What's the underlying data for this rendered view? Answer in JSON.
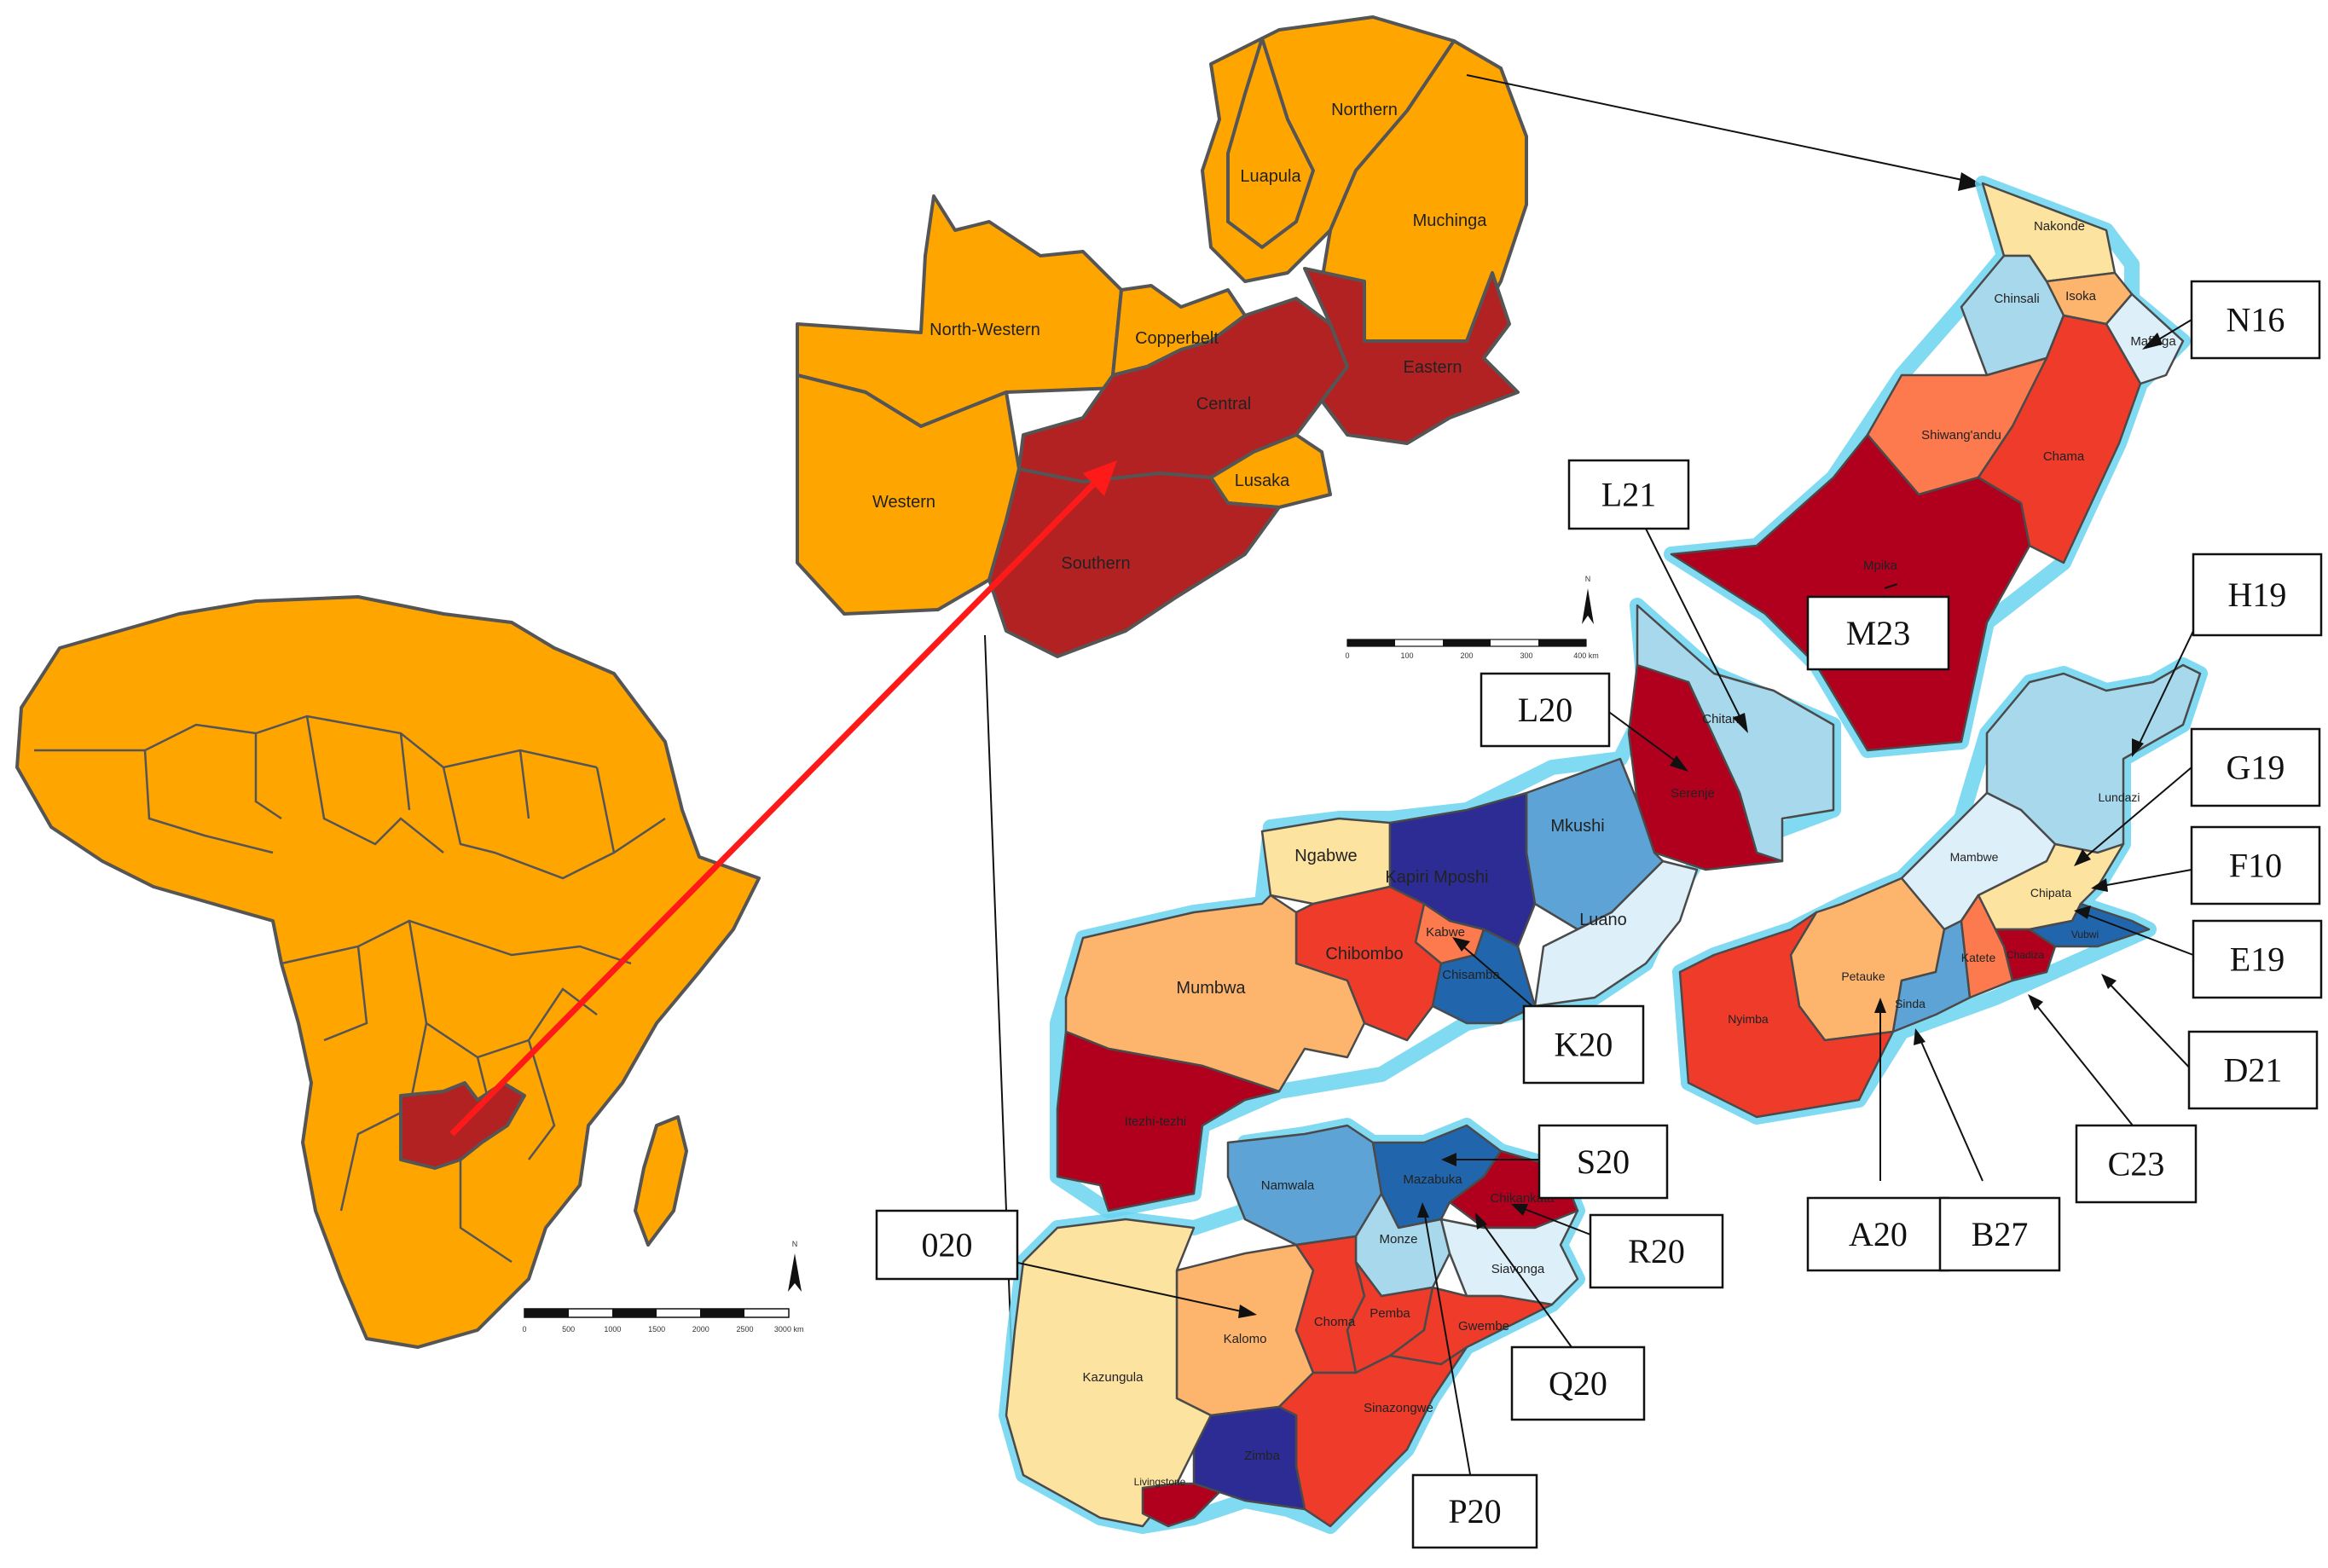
{
  "colors": {
    "orange": "#FFA500",
    "dark_red": "#B22222",
    "deep_red": "#B0001E",
    "red": "#EE3B2A",
    "salmon": "#FC7A4E",
    "light_orange": "#FDB56E",
    "cream": "#FDE3A0",
    "pale_blue": "#DDEFF8",
    "light_blue": "#A8D8EC",
    "mid_blue": "#5DA3D5",
    "blue": "#2166AC",
    "navy": "#2C2C94",
    "highlight_glow": "#6AD3F0",
    "arrow_red": "#FF1A1A"
  },
  "africa_scale": {
    "ticks": [
      "0",
      "500",
      "1000",
      "1500",
      "2000",
      "2500",
      "3000 km"
    ],
    "north": "N"
  },
  "zambia_scale": {
    "ticks": [
      "0",
      "100",
      "200",
      "300",
      "400 km"
    ],
    "north": "N"
  },
  "provinces": [
    {
      "name": "Northern",
      "highlight": false
    },
    {
      "name": "Luapula",
      "highlight": false
    },
    {
      "name": "Muchinga",
      "highlight": false
    },
    {
      "name": "North-Western",
      "highlight": false
    },
    {
      "name": "Copperbelt",
      "highlight": false
    },
    {
      "name": "Central",
      "highlight": true
    },
    {
      "name": "Eastern",
      "highlight": true
    },
    {
      "name": "Western",
      "highlight": false
    },
    {
      "name": "Lusaka",
      "highlight": false
    },
    {
      "name": "Southern",
      "highlight": true
    }
  ],
  "muchinga_districts": [
    {
      "name": "Nakonde",
      "color": "cream"
    },
    {
      "name": "Isoka",
      "color": "light_orange"
    },
    {
      "name": "Chinsali",
      "color": "light_blue"
    },
    {
      "name": "Mafinga",
      "color": "pale_blue"
    },
    {
      "name": "Shiwang'andu",
      "color": "salmon"
    },
    {
      "name": "Chama",
      "color": "red"
    },
    {
      "name": "Mpika",
      "color": "deep_red"
    }
  ],
  "central_districts": [
    {
      "name": "Chitam",
      "color": "light_blue"
    },
    {
      "name": "Serenje",
      "color": "deep_red"
    },
    {
      "name": "Mkushi",
      "color": "mid_blue"
    },
    {
      "name": "Luano",
      "color": "pale_blue"
    },
    {
      "name": "Ngabwe",
      "color": "cream"
    },
    {
      "name": "Kapiri Mposhi",
      "color": "navy"
    },
    {
      "name": "Kabwe",
      "color": "salmon"
    },
    {
      "name": "Chibombo",
      "color": "red"
    },
    {
      "name": "Chisamba",
      "color": "blue"
    },
    {
      "name": "Mumbwa",
      "color": "light_orange"
    },
    {
      "name": "Itezhi-tezhi",
      "color": "deep_red"
    }
  ],
  "eastern_districts": [
    {
      "name": "Lundazi",
      "color": "light_blue"
    },
    {
      "name": "Mambwe",
      "color": "pale_blue"
    },
    {
      "name": "Chipata",
      "color": "cream"
    },
    {
      "name": "Petauke",
      "color": "light_orange"
    },
    {
      "name": "Nyimba",
      "color": "red"
    },
    {
      "name": "Sinda",
      "color": "mid_blue"
    },
    {
      "name": "Katete",
      "color": "salmon"
    },
    {
      "name": "Chadiza",
      "color": "deep_red"
    },
    {
      "name": "Vubwi",
      "color": "blue"
    }
  ],
  "southern_districts": [
    {
      "name": "Namwala",
      "color": "mid_blue"
    },
    {
      "name": "Mazabuka",
      "color": "blue"
    },
    {
      "name": "Chikankata",
      "color": "deep_red"
    },
    {
      "name": "Monze",
      "color": "light_blue"
    },
    {
      "name": "Siavonga",
      "color": "pale_blue"
    },
    {
      "name": "Kalomo",
      "color": "light_orange"
    },
    {
      "name": "Choma",
      "color": "red"
    },
    {
      "name": "Pemba",
      "color": "red"
    },
    {
      "name": "Gwembe",
      "color": "red"
    },
    {
      "name": "Kazungula",
      "color": "cream"
    },
    {
      "name": "Sinazongwe",
      "color": "red"
    },
    {
      "name": "Zimba",
      "color": "navy"
    },
    {
      "name": "Livingstone",
      "color": "deep_red"
    }
  ],
  "codes": [
    "N16",
    "L21",
    "M23",
    "H19",
    "L20",
    "G19",
    "F10",
    "E19",
    "K20",
    "D21",
    "S20",
    "C23",
    "020",
    "R20",
    "A20",
    "B27",
    "Q20",
    "P20"
  ]
}
